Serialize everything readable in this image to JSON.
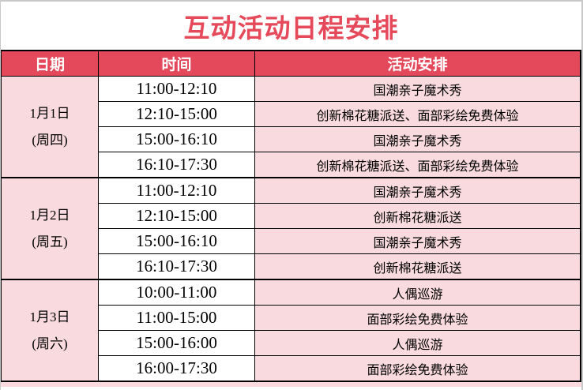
{
  "title": "互动活动日程安排",
  "colors": {
    "title_red": "#E5495A",
    "accent_red": "#E4495B",
    "light_pink": "#F9DADE",
    "header_text": "#FFFFFF",
    "body_text": "#000000",
    "grid_line": "#000000",
    "page_border": "#C9C9C9"
  },
  "table": {
    "headers": [
      "日期",
      "时间",
      "活动安排"
    ],
    "groups": [
      {
        "date": "1月1日",
        "weekday": "(周四)",
        "rows": [
          {
            "time": "11:00-12:10",
            "activity": "国潮亲子魔术秀"
          },
          {
            "time": "12:10-15:00",
            "activity": "创新棉花糖派送、面部彩绘免费体验"
          },
          {
            "time": "15:00-16:10",
            "activity": "国潮亲子魔术秀"
          },
          {
            "time": "16:10-17:30",
            "activity": "创新棉花糖派送、面部彩绘免费体验"
          }
        ]
      },
      {
        "date": "1月2日",
        "weekday": "(周五)",
        "rows": [
          {
            "time": "11:00-12:10",
            "activity": "国潮亲子魔术秀"
          },
          {
            "time": "12:10-15:00",
            "activity": "创新棉花糖派送"
          },
          {
            "time": "15:00-16:10",
            "activity": "国潮亲子魔术秀"
          },
          {
            "time": "16:10-17:30",
            "activity": "创新棉花糖派送"
          }
        ]
      },
      {
        "date": "1月3日",
        "weekday": "(周六)",
        "rows": [
          {
            "time": "10:00-11:00",
            "activity": "人偶巡游"
          },
          {
            "time": "11:00-15:00",
            "activity": "面部彩绘免费体验"
          },
          {
            "time": "15:00-16:00",
            "activity": "人偶巡游"
          },
          {
            "time": "16:00-17:30",
            "activity": "面部彩绘免费体验"
          }
        ]
      }
    ]
  }
}
